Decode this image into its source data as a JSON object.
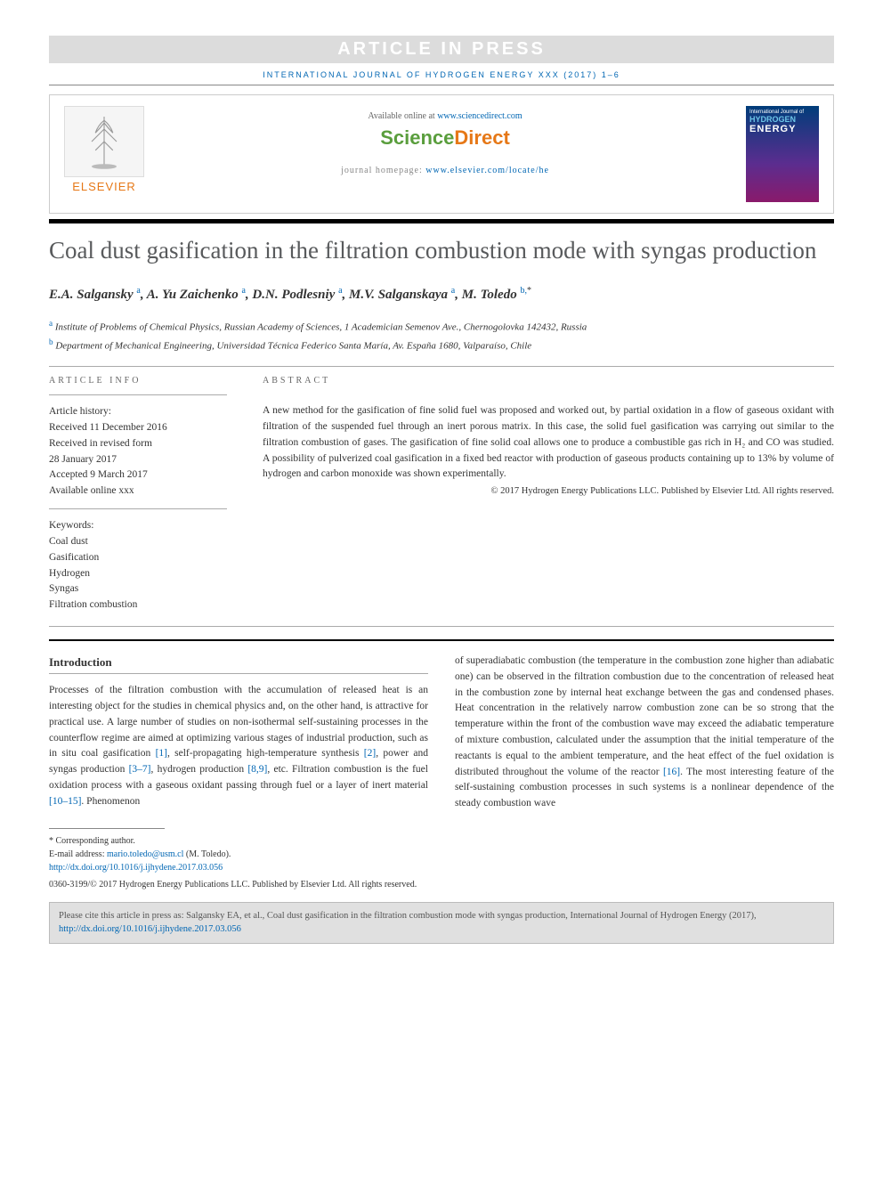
{
  "aip_banner": "ARTICLE IN PRESS",
  "journal_header": "INTERNATIONAL JOURNAL OF HYDROGEN ENERGY XXX (2017) 1–6",
  "header": {
    "available_prefix": "Available online at ",
    "available_url": "www.sciencedirect.com",
    "sd_logo_1": "Science",
    "sd_logo_2": "Direct",
    "homepage_prefix": "journal homepage: ",
    "homepage_url": "www.elsevier.com/locate/he",
    "elsevier_text": "ELSEVIER",
    "cover_line1": "International Journal of",
    "cover_line2": "HYDROGEN",
    "cover_line3": "ENERGY"
  },
  "title": "Coal dust gasification in the filtration combustion mode with syngas production",
  "authors_html": "E.A. Salgansky <sup>a</sup>, A. Yu Zaichenko <sup>a</sup>, D.N. Podlesniy <sup>a</sup>, M.V. Salganskaya <sup>a</sup>, M. Toledo <sup>b,</sup><sup class='ast'>*</sup>",
  "affils": [
    "<sup>a</sup> Institute of Problems of Chemical Physics, Russian Academy of Sciences, 1 Academician Semenov Ave., Chernogolovka 142432, Russia",
    "<sup>b</sup> Department of Mechanical Engineering, Universidad Técnica Federico Santa María, Av. España 1680, Valparaíso, Chile"
  ],
  "article_info_heading": "ARTICLE INFO",
  "abstract_heading": "ABSTRACT",
  "history_label": "Article history:",
  "history": [
    "Received 11 December 2016",
    "Received in revised form",
    "28 January 2017",
    "Accepted 9 March 2017",
    "Available online xxx"
  ],
  "keywords_label": "Keywords:",
  "keywords": [
    "Coal dust",
    "Gasification",
    "Hydrogen",
    "Syngas",
    "Filtration combustion"
  ],
  "abstract": "A new method for the gasification of fine solid fuel was proposed and worked out, by partial oxidation in a flow of gaseous oxidant with filtration of the suspended fuel through an inert porous matrix. In this case, the solid fuel gasification was carrying out similar to the filtration combustion of gases. The gasification of fine solid coal allows one to produce a combustible gas rich in H₂ and CO was studied. A possibility of pulverized coal gasification in a fixed bed reactor with production of gaseous products containing up to 13% by volume of hydrogen and carbon monoxide was shown experimentally.",
  "copyright": "© 2017 Hydrogen Energy Publications LLC. Published by Elsevier Ltd. All rights reserved.",
  "intro_heading": "Introduction",
  "col1": "Processes of the filtration combustion with the accumulation of released heat is an interesting object for the studies in chemical physics and, on the other hand, is attractive for practical use. A large number of studies on non-isothermal self-sustaining processes in the counterflow regime are aimed at optimizing various stages of industrial production, such as in situ coal gasification <a href='#'>[1]</a>, self-propagating high-temperature synthesis <a href='#'>[2]</a>, power and syngas production <a href='#'>[3–7]</a>, hydrogen production <a href='#'>[8,9]</a>, etc. Filtration combustion is the fuel oxidation process with a gaseous oxidant passing through fuel or a layer of inert material <a href='#'>[10–15]</a>. Phenomenon",
  "col2": "of superadiabatic combustion (the temperature in the combustion zone higher than adiabatic one) can be observed in the filtration combustion due to the concentration of released heat in the combustion zone by internal heat exchange between the gas and condensed phases. Heat concentration in the relatively narrow combustion zone can be so strong that the temperature within the front of the combustion wave may exceed the adiabatic temperature of mixture combustion, calculated under the assumption that the initial temperature of the reactants is equal to the ambient temperature, and the heat effect of the fuel oxidation is distributed throughout the volume of the reactor <a href='#'>[16]</a>. The most interesting feature of the self-sustaining combustion processes in such systems is a nonlinear dependence of the steady combustion wave",
  "footer": {
    "corr": "* Corresponding author.",
    "email_label": "E-mail address: ",
    "email": "mario.toledo@usm.cl",
    "email_suffix": " (M. Toledo).",
    "doi": "http://dx.doi.org/10.1016/j.ijhydene.2017.03.056",
    "issn": "0360-3199/© 2017 Hydrogen Energy Publications LLC. Published by Elsevier Ltd. All rights reserved."
  },
  "citebox": "Please cite this article in press as: Salgansky EA, et al., Coal dust gasification in the filtration combustion mode with syngas production, International Journal of Hydrogen Energy (2017), ",
  "citebox_doi": "http://dx.doi.org/10.1016/j.ijhydene.2017.03.056"
}
